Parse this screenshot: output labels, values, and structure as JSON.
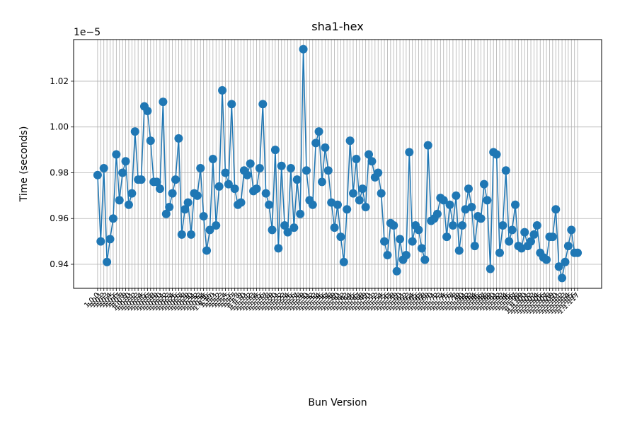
{
  "chart_data": {
    "type": "line",
    "title": "sha1-hex",
    "xlabel": "Bun Version",
    "ylabel": "Time (seconds)",
    "offset_label": "1e−5",
    "categories": [
      "1.0.0",
      "1.0.1",
      "1.0.2",
      "1.0.3",
      "1.0.4",
      "1.0.5",
      "1.0.6",
      "1.0.7",
      "1.0.8",
      "1.0.9",
      "1.0.10",
      "1.0.11",
      "1.0.12",
      "1.0.13",
      "1.0.14",
      "1.0.15",
      "1.0.16",
      "1.0.17",
      "1.0.18",
      "1.0.19",
      "1.0.20",
      "1.0.21",
      "1.0.22",
      "1.0.23",
      "1.0.24",
      "1.0.25",
      "1.0.26",
      "1.0.27",
      "1.0.28",
      "1.0.29",
      "1.0.30",
      "1.0.31",
      "1.0.32",
      "1.0.33",
      "1.0.34",
      "1.0.35",
      "1.0.36",
      "1.1.0",
      "1.1.1",
      "1.1.2",
      "1.1.3",
      "1.1.4",
      "1.1.5",
      "1.1.6",
      "1.1.7",
      "1.1.8",
      "1.1.9",
      "1.1.10",
      "1.1.11",
      "1.1.12",
      "1.1.13",
      "1.1.14",
      "1.1.15",
      "1.1.16",
      "1.1.17",
      "1.1.18",
      "1.1.19",
      "1.1.20",
      "1.1.21",
      "1.1.22",
      "1.1.23",
      "1.1.24",
      "1.1.25",
      "1.1.26",
      "1.1.27",
      "1.1.28",
      "1.1.29",
      "1.1.30",
      "1.1.31",
      "1.1.32",
      "1.1.33",
      "1.1.34",
      "1.1.35",
      "1.1.36",
      "1.1.37",
      "1.1.38",
      "1.1.39",
      "1.1.40",
      "1.1.41",
      "1.1.42",
      "1.1.43",
      "1.1.44",
      "1.1.45",
      "1.1.46",
      "1.1.47",
      "1.1.48",
      "1.1.49",
      "1.1.50",
      "1.1.51",
      "1.1.52",
      "1.1.53",
      "1.1.54",
      "1.1.55",
      "1.1.56",
      "1.1.57",
      "1.1.58",
      "1.1.59",
      "1.1.60",
      "1.1.61",
      "1.1.62",
      "1.1.63",
      "1.1.64",
      "1.1.65",
      "1.1.66",
      "1.1.67",
      "1.1.68",
      "1.1.69",
      "1.1.70",
      "1.1.71",
      "1.1.72",
      "1.1.73",
      "1.1.74",
      "1.1.75",
      "1.1.76",
      "1.1.77",
      "1.1.78",
      "1.1.79",
      "1.1.80",
      "1.1.81",
      "1.1.82",
      "1.1.83",
      "1.1.84",
      "1.1.85",
      "1.1.86",
      "1.1.87",
      "1.1.88",
      "1.1.89",
      "1.1.90",
      "1.1.91",
      "1.1.92",
      "1.1.93",
      "1.1.94",
      "1.1.95",
      "1.1.96",
      "1.1.97",
      "1.1.98",
      "1.1.99",
      "1.1.100",
      "1.1.101",
      "1.1.102",
      "1.1.103",
      "1.1.104",
      "1.1.105",
      "1.1.106",
      "1.1.107",
      "1.1.108",
      "1.1.109",
      "1.1.110",
      "1.1.111",
      "1.1.112",
      "1.1.113",
      "1.1.114",
      "1.1.115",
      "1.1.116",
      "1.1.117"
    ],
    "series": [
      {
        "name": "sha1-hex",
        "color": "#1f77b4",
        "values": [
          0.979,
          0.95,
          0.982,
          0.941,
          0.951,
          0.96,
          0.988,
          0.968,
          0.98,
          0.985,
          0.966,
          0.971,
          0.998,
          0.977,
          0.977,
          1.009,
          1.007,
          0.994,
          0.976,
          0.976,
          0.973,
          1.011,
          0.962,
          0.965,
          0.971,
          0.977,
          0.995,
          0.953,
          0.964,
          0.967,
          0.953,
          0.971,
          0.97,
          0.982,
          0.961,
          0.946,
          0.955,
          0.986,
          0.957,
          0.974,
          1.016,
          0.98,
          0.975,
          1.01,
          0.973,
          0.966,
          0.967,
          0.981,
          0.979,
          0.984,
          0.972,
          0.973,
          0.982,
          1.01,
          0.971,
          0.966,
          0.955,
          0.99,
          0.947,
          0.983,
          0.957,
          0.954,
          0.982,
          0.956,
          0.977,
          0.962,
          1.034,
          0.981,
          0.968,
          0.966,
          0.993,
          0.998,
          0.976,
          0.991,
          0.981,
          0.967,
          0.956,
          0.966,
          0.952,
          0.941,
          0.964,
          0.994,
          0.971,
          0.986,
          0.968,
          0.973,
          0.965,
          0.988,
          0.985,
          0.978,
          0.98,
          0.971,
          0.95,
          0.944,
          0.958,
          0.957,
          0.937,
          0.951,
          0.942,
          0.944,
          0.989,
          0.95,
          0.957,
          0.955,
          0.947,
          0.942,
          0.992,
          0.959,
          0.96,
          0.962,
          0.969,
          0.968,
          0.952,
          0.966,
          0.957,
          0.97,
          0.946,
          0.957,
          0.964,
          0.973,
          0.965,
          0.948,
          0.961,
          0.96,
          0.975,
          0.968,
          0.938,
          0.989,
          0.988,
          0.945,
          0.957,
          0.981,
          0.95,
          0.955,
          0.966,
          0.948,
          0.947,
          0.954,
          0.948,
          0.95,
          0.953,
          0.957,
          0.945,
          0.943,
          0.942,
          0.952,
          0.952,
          0.964,
          0.939,
          0.934,
          0.941,
          0.948,
          0.955,
          0.945,
          0.945
        ]
      }
    ],
    "ylim": [
      0.9295,
      1.0382
    ],
    "yticks": [
      0.94,
      0.96,
      0.98,
      {
        "value": 1,
        "label": "1.00"
      },
      1.02
    ],
    "grid": true
  }
}
